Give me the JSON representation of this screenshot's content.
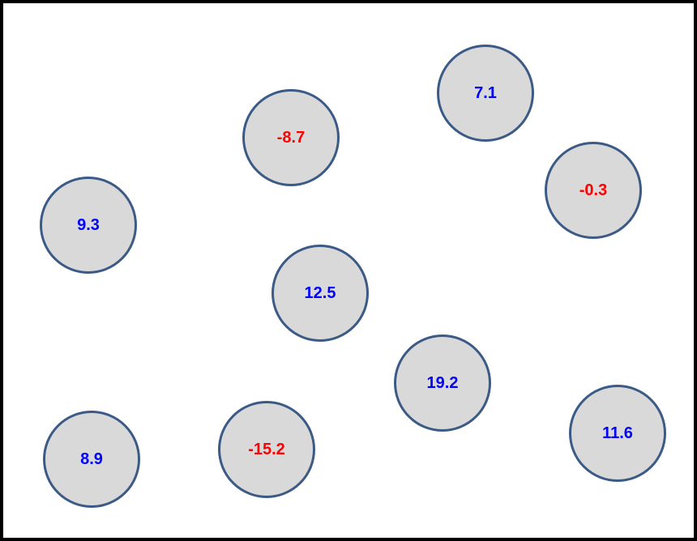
{
  "colors": {
    "border": "#000000",
    "circle_fill": "#d9d9d9",
    "circle_stroke": "#3b5a86",
    "positive_text": "#0000ff",
    "negative_text": "#ff0000"
  },
  "nodes": [
    {
      "value": "7.1"
    },
    {
      "value": "-8.7"
    },
    {
      "value": "-0.3"
    },
    {
      "value": "9.3"
    },
    {
      "value": "12.5"
    },
    {
      "value": "19.2"
    },
    {
      "value": "-15.2"
    },
    {
      "value": "11.6"
    },
    {
      "value": "8.9"
    }
  ]
}
